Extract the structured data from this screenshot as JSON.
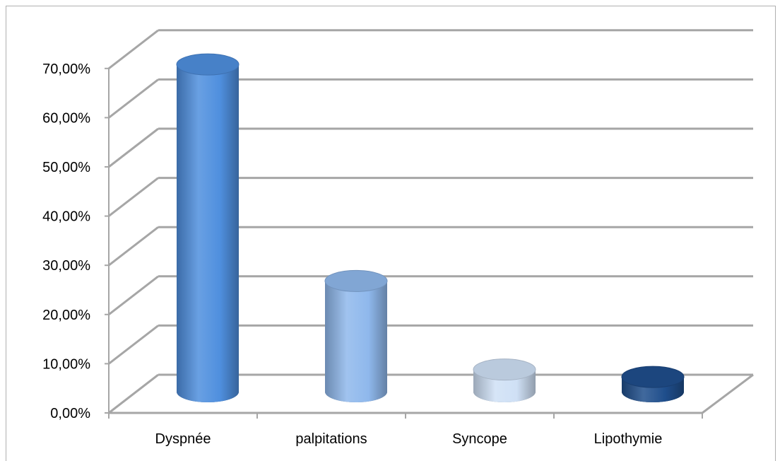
{
  "chart_data": {
    "type": "bar",
    "style": "3d-cylinder",
    "categories": [
      "Dyspnée",
      "palpitations",
      "Syncope",
      "Lipothymie"
    ],
    "values": [
      66.5,
      22.5,
      4.5,
      3.0
    ],
    "title": "",
    "xlabel": "",
    "ylabel": "",
    "ylim": [
      0,
      70
    ],
    "yticks": [
      "0,00%",
      "10,00%",
      "20,00%",
      "30,00%",
      "40,00%",
      "50,00%",
      "60,00%",
      "70,00%"
    ],
    "grid": true,
    "legend": "none",
    "colors": [
      "#4f8fde",
      "#8fb8ec",
      "#cfe0f5",
      "#1f4e8c"
    ]
  }
}
